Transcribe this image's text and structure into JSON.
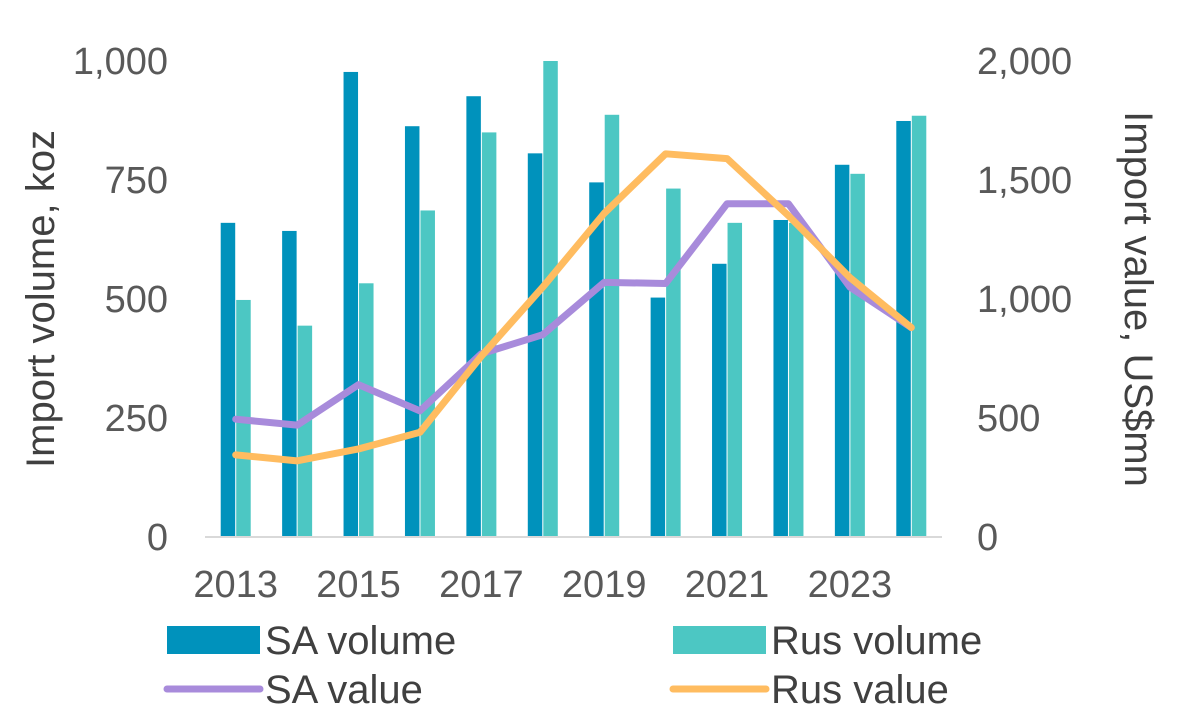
{
  "chart_data": {
    "type": "bar",
    "categories": [
      "2013",
      "2014",
      "2015",
      "2016",
      "2017",
      "2018",
      "2019",
      "2020",
      "2021",
      "2022",
      "2023",
      "2024"
    ],
    "x_tick_labels": [
      "2013",
      "2015",
      "2017",
      "2019",
      "2021",
      "2023"
    ],
    "series": [
      {
        "name": "SA volume",
        "type": "bar",
        "axis": "left",
        "color": "#0092BC",
        "values": [
          660,
          643,
          977,
          863,
          926,
          806,
          745,
          503,
          574,
          666,
          782,
          874
        ]
      },
      {
        "name": "Rus volume",
        "type": "bar",
        "axis": "left",
        "color": "#4CC7C3",
        "values": [
          498,
          444,
          533,
          686,
          850,
          1000,
          887,
          732,
          660,
          660,
          763,
          885
        ]
      },
      {
        "name": "SA value",
        "type": "line",
        "axis": "right",
        "color": "#A88BDB",
        "values": [
          495,
          470,
          640,
          530,
          770,
          850,
          1070,
          1065,
          1400,
          1400,
          1050,
          880
        ]
      },
      {
        "name": "Rus value",
        "type": "line",
        "axis": "right",
        "color": "#FFBC60",
        "values": [
          345,
          320,
          370,
          440,
          760,
          1050,
          1360,
          1610,
          1590,
          1350,
          1090,
          880
        ]
      }
    ],
    "title": "",
    "ylabel": "Import volume, koz",
    "y2label": "Import value, US$mn",
    "ylim": [
      0,
      1000
    ],
    "y2lim": [
      0,
      2000
    ],
    "y_ticks": [
      "0",
      "250",
      "500",
      "750",
      "1,000"
    ],
    "y2_ticks": [
      "0",
      "500",
      "1,000",
      "1,500",
      "2,000"
    ],
    "grid": false,
    "legend_position": "bottom"
  }
}
